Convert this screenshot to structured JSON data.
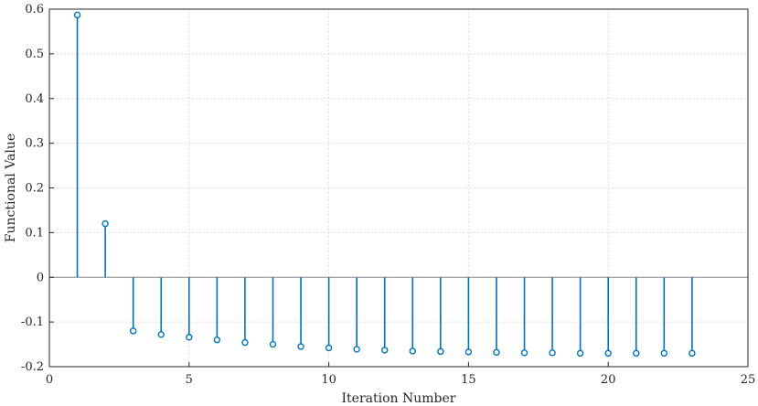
{
  "chart_data": {
    "type": "stem",
    "title": "",
    "xlabel": "Iteration Number",
    "ylabel": "Functional Value",
    "xlim": [
      0,
      25
    ],
    "ylim": [
      -0.2,
      0.6
    ],
    "xticks": [
      "0",
      "5",
      "10",
      "15",
      "20",
      "25"
    ],
    "yticks": [
      "-0.2",
      "-0.1",
      "0",
      "0.1",
      "0.2",
      "0.3",
      "0.4",
      "0.5",
      "0.6"
    ],
    "grid": true,
    "baseline": 0,
    "color": "#0072BD",
    "x": [
      1,
      2,
      3,
      4,
      5,
      6,
      7,
      8,
      9,
      10,
      11,
      12,
      13,
      14,
      15,
      16,
      17,
      18,
      19,
      20,
      21,
      22,
      23
    ],
    "values": [
      0.587,
      0.12,
      -0.12,
      -0.128,
      -0.134,
      -0.14,
      -0.146,
      -0.15,
      -0.155,
      -0.158,
      -0.161,
      -0.163,
      -0.165,
      -0.166,
      -0.167,
      -0.168,
      -0.169,
      -0.169,
      -0.17,
      -0.17,
      -0.17,
      -0.17,
      -0.17
    ]
  }
}
